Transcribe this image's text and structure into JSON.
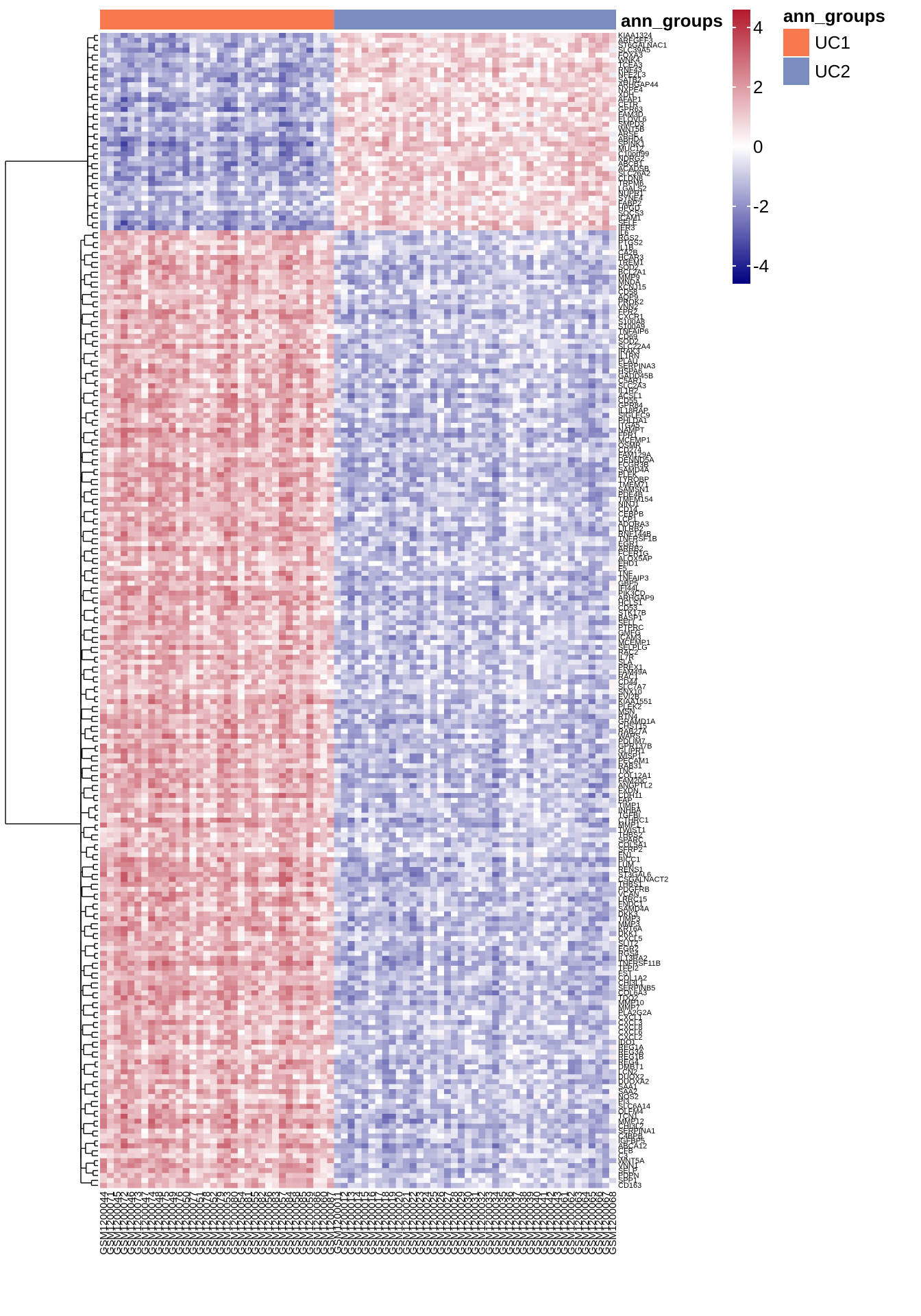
{
  "chart_data": {
    "type": "heatmap",
    "title": "",
    "annotation": {
      "name": "ann_groups",
      "groups": [
        {
          "label": "UC1",
          "color": "#F8784F",
          "n_samples": 34
        },
        {
          "label": "UC2",
          "color": "#7B8CC0",
          "n_samples": 41
        }
      ]
    },
    "color_scale": {
      "low": "#000080",
      "mid": "#FFFFFF",
      "high": "#B2182B",
      "range": [
        -4.6,
        4.6
      ],
      "ticks": [
        4,
        2,
        0,
        -2,
        -4
      ],
      "tick_labels": [
        "4",
        "2",
        "0",
        "-2",
        "-4"
      ]
    },
    "row_blocks": [
      {
        "cluster": "up_in_UC2",
        "n_rows": 40,
        "uc1_mean": -1.4,
        "uc2_mean": 0.9
      },
      {
        "cluster": "up_in_UC1",
        "n_rows": 194,
        "uc1_mean": 1.4,
        "uc2_mean": -1.1
      }
    ],
    "row_labels": [
      "KIAA1324",
      "ARFGEF3",
      "ST6GALNAC1",
      "SLC39A5",
      "FOXA3",
      "WNK4",
      "TCEA3",
      "RNF43",
      "NFE2L3",
      "SATB2",
      "ARHGAP44",
      "NXPE4",
      "XDH",
      "AFAP1",
      "CFTR",
      "GPR63",
      "FAM3D",
      "ELOVL6",
      "SMPD3",
      "WNT5B",
      "ARSE",
      "ABHD4",
      "SPINK1",
      "MUC12",
      "C10orf99",
      "NDRG2",
      "ABCB1",
      "ACADSB",
      "SLC26A2",
      "CLDN8",
      "TRPM6",
      "LGALS2",
      "NUPR1",
      "SYNE4",
      "FABP2",
      "HPGD",
      "SOCS3",
      "ICAM1",
      "SELE",
      "IER3",
      "IL6",
      "RGS2",
      "PTGS2",
      "IL1B",
      "CA2B",
      "HCAR3",
      "TREM1",
      "SOD2",
      "BCL2A1",
      "MMP9",
      "MNDA",
      "KCNJ15",
      "CD58",
      "AQP9",
      "PROK2",
      "VNN2",
      "FPR2",
      "CXCR1",
      "S100A8",
      "S100A9",
      "TNFAIP6",
      "CD69",
      "SOD2",
      "SLC22A4",
      "IRAK3",
      "IL1RN",
      "PLAU",
      "SERPINA3",
      "HSPA6",
      "GADD45B",
      "C5AR1",
      "SLC2A3",
      "IL1R2",
      "ACSL1",
      "CD55",
      "GPR84",
      "IL18RAP",
      "SIGLEC9",
      "PHLDA1",
      "ITGA5",
      "NAMPT",
      "FPR1",
      "MCEMP1",
      "OSMR",
      "CD274",
      "FAM129A",
      "DENND5A",
      "FCGR3B",
      "SAMD4A",
      "PLEK",
      "TYROBP",
      "TMEM71",
      "SAMSN1",
      "PDE4B",
      "TMEM154",
      "NINJ1",
      "CD14",
      "CEBPB",
      "LCP1",
      "ADORA3",
      "LILRB2",
      "RNF144B",
      "TNFRSF1B",
      "EGR1",
      "ARRB2",
      "FCER1G",
      "ALOX5AP",
      "EHD1",
      "F5",
      "TNF",
      "TNFAIP3",
      "GBP5",
      "IFI44L",
      "PIK3CD",
      "ARHGAP9",
      "HCLS1",
      "CD53",
      "STK17B",
      "BASP1",
      "SELL",
      "PTPRC",
      "GMFG",
      "ICAM3",
      "MCEMP1",
      "SELPLG",
      "RAC2",
      "IL7R",
      "SLA",
      "PREX1",
      "FAM49A",
      "RAC1",
      "CD44",
      "SLC7A7",
      "SNX10",
      "EVI2B",
      "KIAA1551",
      "PLEK2",
      "MSN",
      "RTN4",
      "GRAMD1A",
      "CHST15",
      "RAB27A",
      "WARS",
      "PDLIM7",
      "GPR137B",
      "GLIPR1",
      "WISP1",
      "PECAM1",
      "RAB31",
      "TNC",
      "COL12A1",
      "FAM20C",
      "ANGPTL2",
      "FXDN",
      "CDH11",
      "FAP",
      "TIMP1",
      "INHBA",
      "TGFBI",
      "CTHRC1",
      "MMP1",
      "TWIST1",
      "THBS2",
      "SPARC",
      "COL5A1",
      "SFRP2",
      "FN1",
      "BICC1",
      "LUM",
      "RENS1",
      "ST3GAL6",
      "CSGALNACT2",
      "THBS1",
      "PDGFRB",
      "VCAN",
      "LRRC15",
      "FNDC1",
      "SAMD4A",
      "DKK3",
      "TIMP3",
      "MMP3",
      "KRT6A",
      "DKK1",
      "CXCL5",
      "SLIT2",
      "EGR2",
      "RGS4",
      "IL13RA2",
      "TNFRSF11B",
      "TFPI2",
      "FST",
      "COL1A2",
      "CHI3L1",
      "SERPINB5",
      "COL6A3",
      "TDO2",
      "MMP10",
      "MMP7",
      "PLA2G2A",
      "CXCL1",
      "CXCL3",
      "CXCL8",
      "CXCL6",
      "CXCL2",
      "IDO1",
      "REG1A",
      "REG3A",
      "REG1B",
      "REG4",
      "DMBT1",
      "LCN2",
      "DUOX2",
      "DUOXA2",
      "SAA1",
      "SAA2",
      "NOS2",
      "PI3",
      "SLC6A14",
      "OLFM4",
      "TCN1",
      "MMP12",
      "CHI3L2",
      "SERPINA1",
      "C4BPB",
      "IGFBP5",
      "ABCA12",
      "CFB",
      "C3",
      "WNT5A",
      "VNN1",
      "SELP",
      "PDPN",
      "SPP1",
      "CD163"
    ],
    "column_labels": [
      "GSM1200044",
      "GSM1200071",
      "GSM1200045",
      "GSM1200072",
      "GSM1200046",
      "GSM1200073",
      "GSM1200047",
      "GSM1200074",
      "GSM1200048",
      "GSM1200075",
      "GSM1200049",
      "GSM1200076",
      "GSM1200050",
      "GSM1200077",
      "GSM1200051",
      "GSM1200078",
      "GSM1200052",
      "GSM1200079",
      "GSM1200053",
      "GSM1200080",
      "GSM1200054",
      "GSM1200081",
      "GSM1200055",
      "GSM1200082",
      "GSM1200056",
      "GSM1200083",
      "GSM1200057",
      "GSM1200084",
      "GSM1200058",
      "GSM1200085",
      "GSM1200059",
      "GSM1200086",
      "GSM1200060",
      "GSM1200087",
      "GSM1200011",
      "GSM1200012",
      "GSM1200013",
      "GSM1200014",
      "GSM1200015",
      "GSM1200016",
      "GSM1200017",
      "GSM1200018",
      "GSM1200019",
      "GSM1200020",
      "GSM1200021",
      "GSM1200022",
      "GSM1200023",
      "GSM1200024",
      "GSM1200025",
      "GSM1200026",
      "GSM1200027",
      "GSM1200028",
      "GSM1200029",
      "GSM1200030",
      "GSM1200031",
      "GSM1200032",
      "GSM1200033",
      "GSM1200034",
      "GSM1200035",
      "GSM1200036",
      "GSM1200037",
      "GSM1200038",
      "GSM1200039",
      "GSM1200040",
      "GSM1200041",
      "GSM1200042",
      "GSM1200043",
      "GSM1200061",
      "GSM1200062",
      "GSM1200063",
      "GSM1200064",
      "GSM1200065",
      "GSM1200066",
      "GSM1200067",
      "GSM1200068"
    ],
    "legend_position": "top-right",
    "grid": false
  }
}
